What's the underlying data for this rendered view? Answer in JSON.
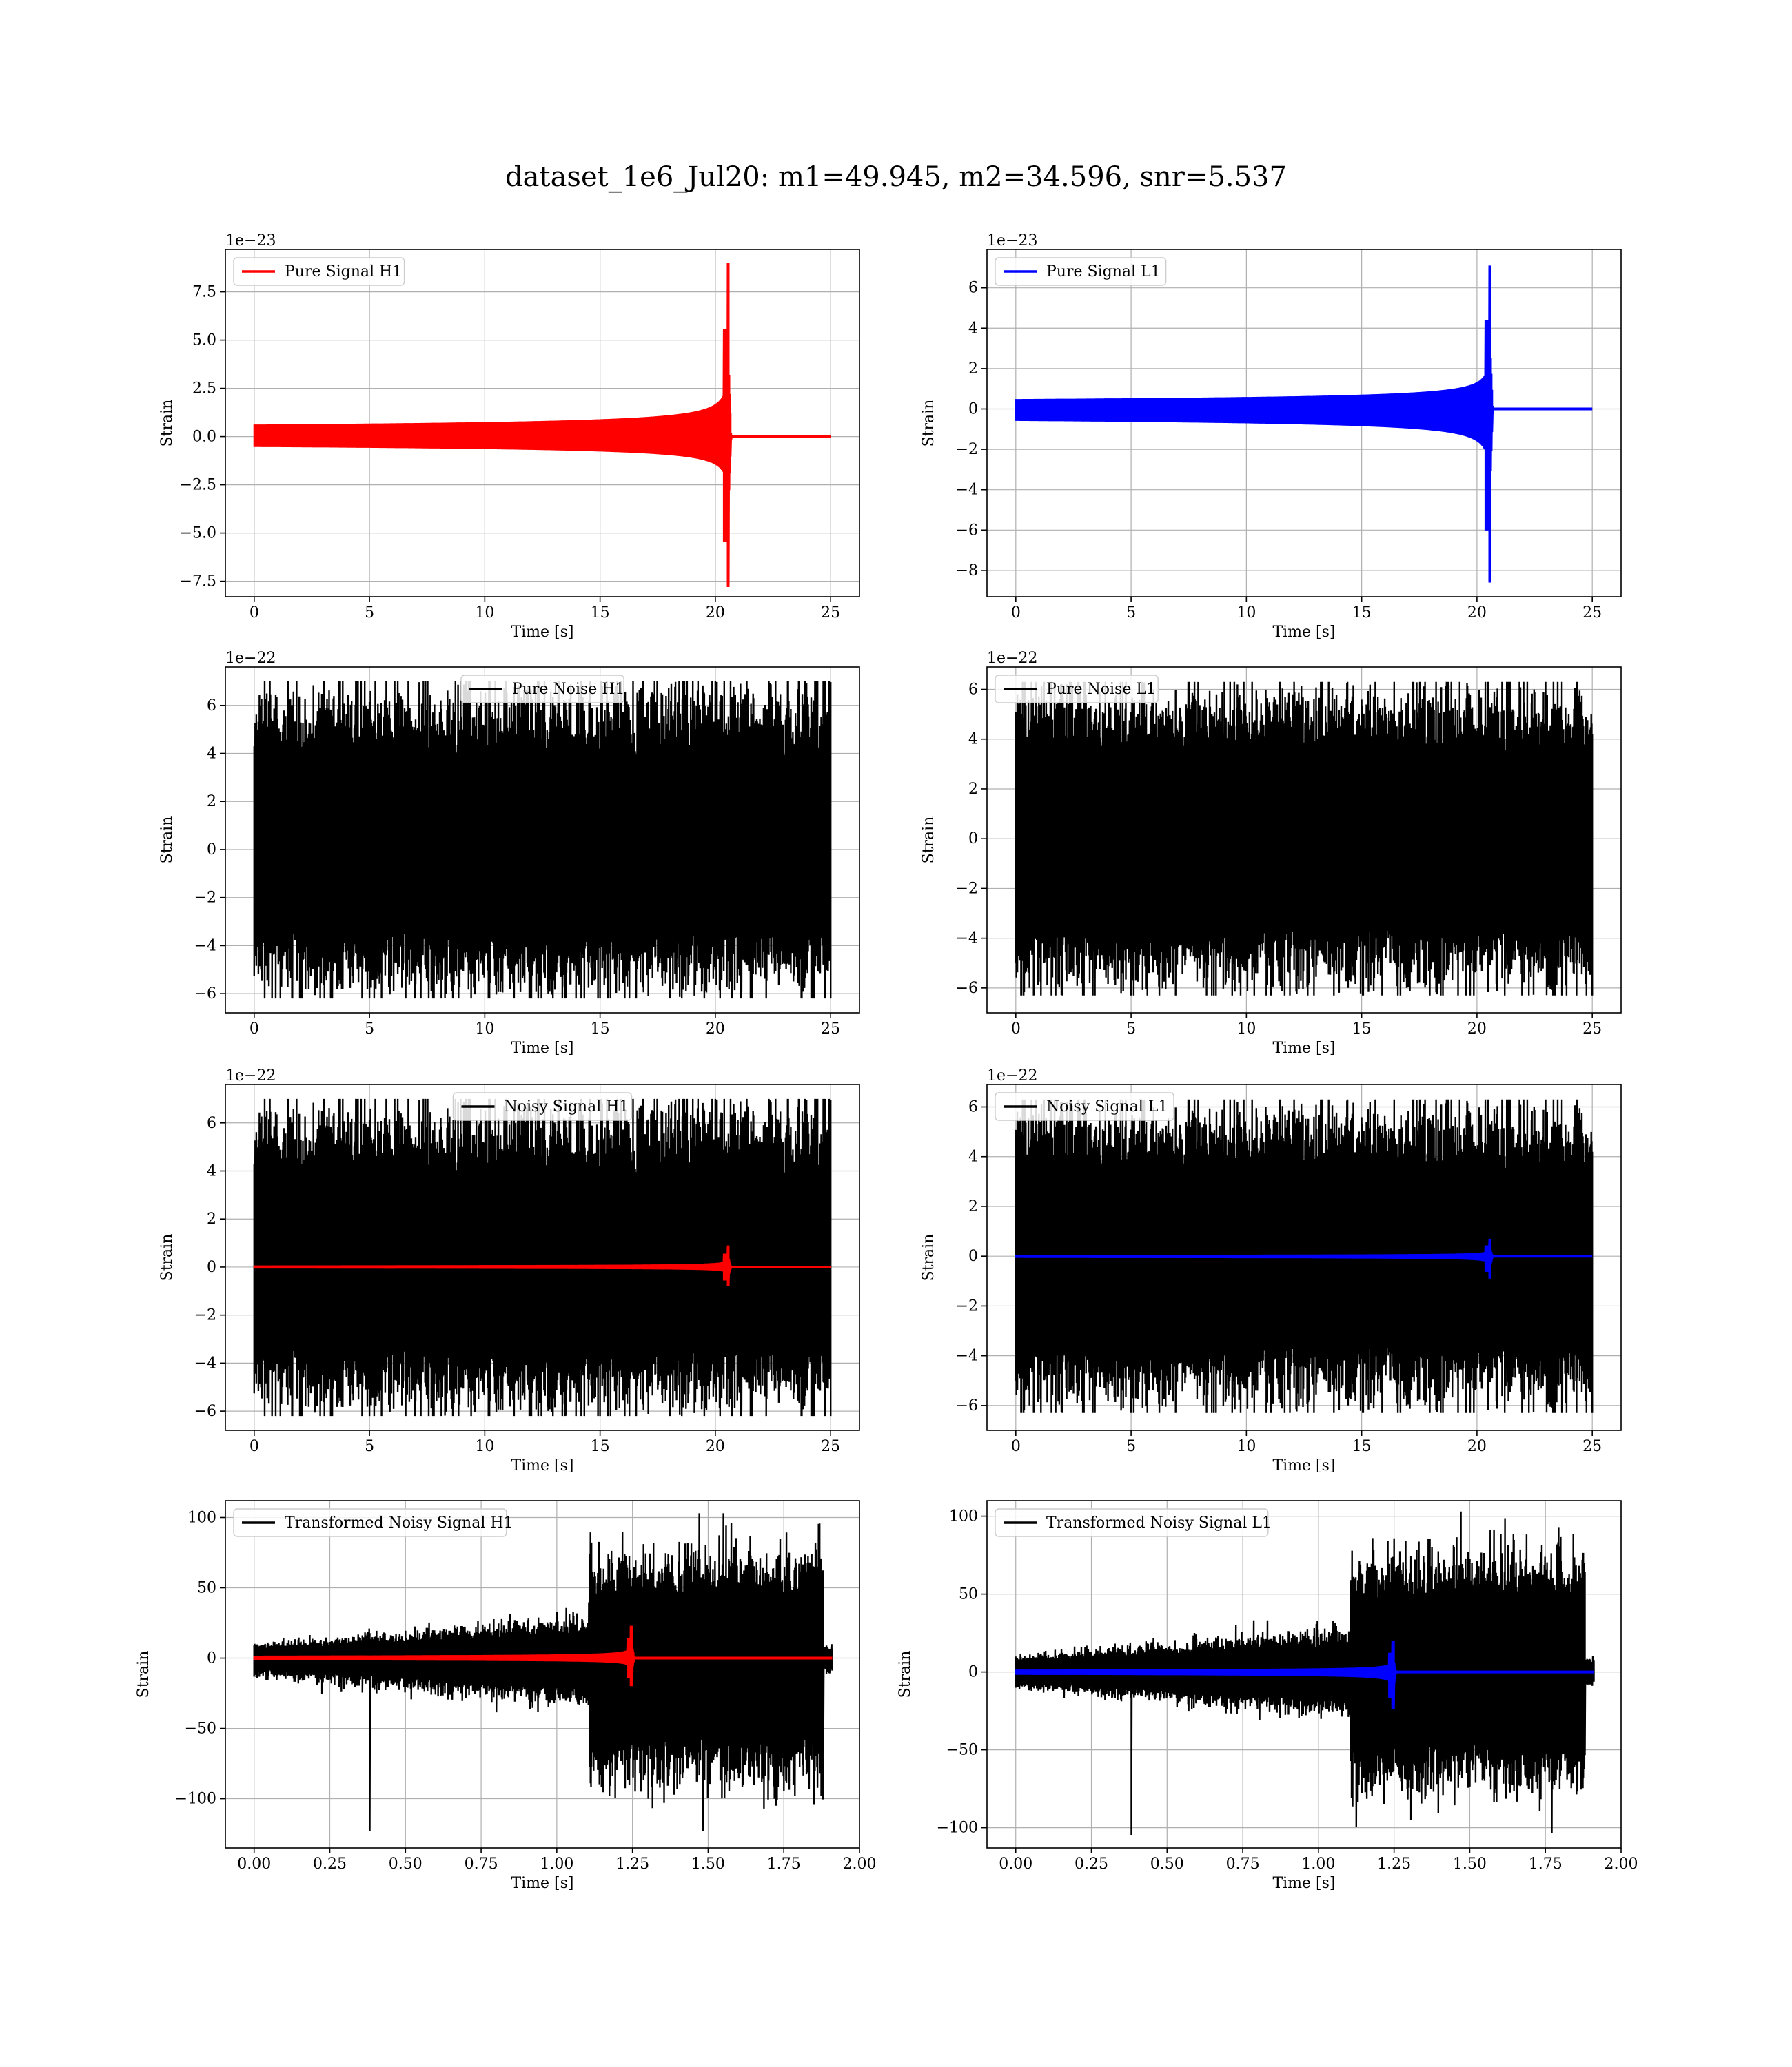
{
  "figure": {
    "title": "dataset_1e6_Jul20: m1=49.945, m2=34.596, snr=5.537"
  },
  "chart_data": [
    {
      "id": "pure-signal-h1",
      "type": "line",
      "xlabel": "Time [s]",
      "ylabel": "Strain",
      "offset_text": "1e−23",
      "xlim": [
        -1.25,
        26.25
      ],
      "ylim": [
        -8.3,
        9.7
      ],
      "xticks": [
        0,
        5,
        10,
        15,
        20,
        25
      ],
      "xtick_labels": [
        "0",
        "5",
        "10",
        "15",
        "20",
        "25"
      ],
      "yticks": [
        -7.5,
        -5.0,
        -2.5,
        0.0,
        2.5,
        5.0,
        7.5
      ],
      "ytick_labels": [
        "−7.5",
        "−5.0",
        "−2.5",
        "0.0",
        "2.5",
        "5.0",
        "7.5"
      ],
      "grid": true,
      "legend": {
        "placement": "upper-left",
        "entries": [
          {
            "label": "Pure Signal H1",
            "color": "#ff0000"
          }
        ]
      },
      "series": [
        {
          "name": "Pure Signal H1",
          "color": "#ff0000",
          "kind": "chirp",
          "x_range": [
            0,
            25
          ],
          "t_merge": 20.6,
          "amp_max": 9.0,
          "amp_min": -7.8
        }
      ]
    },
    {
      "id": "pure-signal-l1",
      "type": "line",
      "xlabel": "Time [s]",
      "ylabel": "Strain",
      "offset_text": "1e−23",
      "xlim": [
        -1.25,
        26.25
      ],
      "ylim": [
        -9.3,
        7.9
      ],
      "xticks": [
        0,
        5,
        10,
        15,
        20,
        25
      ],
      "xtick_labels": [
        "0",
        "5",
        "10",
        "15",
        "20",
        "25"
      ],
      "yticks": [
        -8,
        -6,
        -4,
        -2,
        0,
        2,
        4,
        6
      ],
      "ytick_labels": [
        "−8",
        "−6",
        "−4",
        "−2",
        "0",
        "2",
        "4",
        "6"
      ],
      "grid": true,
      "legend": {
        "placement": "upper-left",
        "entries": [
          {
            "label": "Pure Signal L1",
            "color": "#0000ff"
          }
        ]
      },
      "series": [
        {
          "name": "Pure Signal L1",
          "color": "#0000ff",
          "kind": "chirp",
          "x_range": [
            0,
            25
          ],
          "t_merge": 20.6,
          "amp_max": 7.1,
          "amp_min": -8.6
        }
      ]
    },
    {
      "id": "pure-noise-h1",
      "type": "line",
      "xlabel": "Time [s]",
      "ylabel": "Strain",
      "offset_text": "1e−22",
      "xlim": [
        -1.25,
        26.25
      ],
      "ylim": [
        -6.8,
        7.6
      ],
      "xticks": [
        0,
        5,
        10,
        15,
        20,
        25
      ],
      "xtick_labels": [
        "0",
        "5",
        "10",
        "15",
        "20",
        "25"
      ],
      "yticks": [
        -6,
        -4,
        -2,
        0,
        2,
        4,
        6
      ],
      "ytick_labels": [
        "−6",
        "−4",
        "−2",
        "0",
        "2",
        "4",
        "6"
      ],
      "grid": true,
      "legend": {
        "placement": "upper-center",
        "entries": [
          {
            "label": "Pure Noise H1",
            "color": "#000000"
          }
        ]
      },
      "series": [
        {
          "name": "Pure Noise H1",
          "color": "#000000",
          "kind": "noise",
          "x_range": [
            0,
            25
          ],
          "amp_max": 7.0,
          "amp_min": -6.2,
          "seed": 11
        }
      ]
    },
    {
      "id": "pure-noise-l1",
      "type": "line",
      "xlabel": "Time [s]",
      "ylabel": "Strain",
      "offset_text": "1e−22",
      "xlim": [
        -1.25,
        26.25
      ],
      "ylim": [
        -7.0,
        6.9
      ],
      "xticks": [
        0,
        5,
        10,
        15,
        20,
        25
      ],
      "xtick_labels": [
        "0",
        "5",
        "10",
        "15",
        "20",
        "25"
      ],
      "yticks": [
        -6,
        -4,
        -2,
        0,
        2,
        4,
        6
      ],
      "ytick_labels": [
        "−6",
        "−4",
        "−2",
        "0",
        "2",
        "4",
        "6"
      ],
      "grid": true,
      "legend": {
        "placement": "upper-left",
        "entries": [
          {
            "label": "Pure Noise L1",
            "color": "#000000"
          }
        ]
      },
      "series": [
        {
          "name": "Pure Noise L1",
          "color": "#000000",
          "kind": "noise",
          "x_range": [
            0,
            25
          ],
          "amp_max": 6.3,
          "amp_min": -6.3,
          "seed": 23
        }
      ]
    },
    {
      "id": "noisy-signal-h1",
      "type": "line",
      "xlabel": "Time [s]",
      "ylabel": "Strain",
      "offset_text": "1e−22",
      "xlim": [
        -1.25,
        26.25
      ],
      "ylim": [
        -6.8,
        7.6
      ],
      "xticks": [
        0,
        5,
        10,
        15,
        20,
        25
      ],
      "xtick_labels": [
        "0",
        "5",
        "10",
        "15",
        "20",
        "25"
      ],
      "yticks": [
        -6,
        -4,
        -2,
        0,
        2,
        4,
        6
      ],
      "ytick_labels": [
        "−6",
        "−4",
        "−2",
        "0",
        "2",
        "4",
        "6"
      ],
      "grid": true,
      "legend": {
        "placement": "upper-center",
        "entries": [
          {
            "label": "Noisy Signal H1",
            "color": "#000000"
          }
        ]
      },
      "series": [
        {
          "name": "Noisy Signal H1",
          "color": "#000000",
          "kind": "noise",
          "x_range": [
            0,
            25
          ],
          "amp_max": 7.0,
          "amp_min": -6.2,
          "seed": 11
        },
        {
          "name": "",
          "color": "#ff0000",
          "kind": "chirp",
          "x_range": [
            0,
            25
          ],
          "t_merge": 20.6,
          "amp_max": 0.9,
          "amp_min": -0.8
        }
      ]
    },
    {
      "id": "noisy-signal-l1",
      "type": "line",
      "xlabel": "Time [s]",
      "ylabel": "Strain",
      "offset_text": "1e−22",
      "xlim": [
        -1.25,
        26.25
      ],
      "ylim": [
        -7.0,
        6.9
      ],
      "xticks": [
        0,
        5,
        10,
        15,
        20,
        25
      ],
      "xtick_labels": [
        "0",
        "5",
        "10",
        "15",
        "20",
        "25"
      ],
      "yticks": [
        -6,
        -4,
        -2,
        0,
        2,
        4,
        6
      ],
      "ytick_labels": [
        "−6",
        "−4",
        "−2",
        "0",
        "2",
        "4",
        "6"
      ],
      "grid": true,
      "legend": {
        "placement": "upper-left",
        "entries": [
          {
            "label": "Noisy Signal L1",
            "color": "#000000"
          }
        ]
      },
      "series": [
        {
          "name": "Noisy Signal L1",
          "color": "#000000",
          "kind": "noise",
          "x_range": [
            0,
            25
          ],
          "amp_max": 6.3,
          "amp_min": -6.3,
          "seed": 23
        },
        {
          "name": "",
          "color": "#0000ff",
          "kind": "chirp",
          "x_range": [
            0,
            25
          ],
          "t_merge": 20.6,
          "amp_max": 0.7,
          "amp_min": -0.9
        }
      ]
    },
    {
      "id": "transformed-noisy-signal-h1",
      "type": "line",
      "xlabel": "Time [s]",
      "ylabel": "Strain",
      "offset_text": "",
      "xlim": [
        -0.095,
        2.0
      ],
      "ylim": [
        -135,
        112
      ],
      "xticks": [
        0.0,
        0.25,
        0.5,
        0.75,
        1.0,
        1.25,
        1.5,
        1.75,
        2.0
      ],
      "xtick_labels": [
        "0.00",
        "0.25",
        "0.50",
        "0.75",
        "1.00",
        "1.25",
        "1.50",
        "1.75",
        "2.00"
      ],
      "yticks": [
        -100,
        -50,
        0,
        50,
        100
      ],
      "ytick_labels": [
        "−100",
        "−50",
        "0",
        "50",
        "100"
      ],
      "grid": true,
      "legend": {
        "placement": "upper-left",
        "entries": [
          {
            "label": "Transformed Noisy Signal H1",
            "color": "#000000"
          }
        ]
      },
      "series": [
        {
          "name": "Transformed Noisy Signal H1",
          "color": "#000000",
          "kind": "whitened",
          "x_range": [
            0,
            1.91
          ],
          "amp_max": 103,
          "amp_min": -123,
          "seed": 37
        },
        {
          "name": "",
          "color": "#ff0000",
          "kind": "chirp",
          "x_range": [
            0,
            1.91
          ],
          "t_merge": 1.25,
          "amp_max": 23,
          "amp_min": -20
        }
      ]
    },
    {
      "id": "transformed-noisy-signal-l1",
      "type": "line",
      "xlabel": "Time [s]",
      "ylabel": "Strain",
      "offset_text": "",
      "xlim": [
        -0.095,
        2.0
      ],
      "ylim": [
        -113,
        110
      ],
      "xticks": [
        0.0,
        0.25,
        0.5,
        0.75,
        1.0,
        1.25,
        1.5,
        1.75,
        2.0
      ],
      "xtick_labels": [
        "0.00",
        "0.25",
        "0.50",
        "0.75",
        "1.00",
        "1.25",
        "1.50",
        "1.75",
        "2.00"
      ],
      "yticks": [
        -100,
        -50,
        0,
        50,
        100
      ],
      "ytick_labels": [
        "−100",
        "−50",
        "0",
        "50",
        "100"
      ],
      "grid": true,
      "legend": {
        "placement": "upper-left",
        "entries": [
          {
            "label": "Transformed Noisy Signal L1",
            "color": "#000000"
          }
        ]
      },
      "series": [
        {
          "name": "Transformed Noisy Signal L1",
          "color": "#000000",
          "kind": "whitened",
          "x_range": [
            0,
            1.91
          ],
          "amp_max": 103,
          "amp_min": -105,
          "seed": 53
        },
        {
          "name": "",
          "color": "#0000ff",
          "kind": "chirp",
          "x_range": [
            0,
            1.91
          ],
          "t_merge": 1.25,
          "amp_max": 20,
          "amp_min": -24
        }
      ]
    }
  ]
}
